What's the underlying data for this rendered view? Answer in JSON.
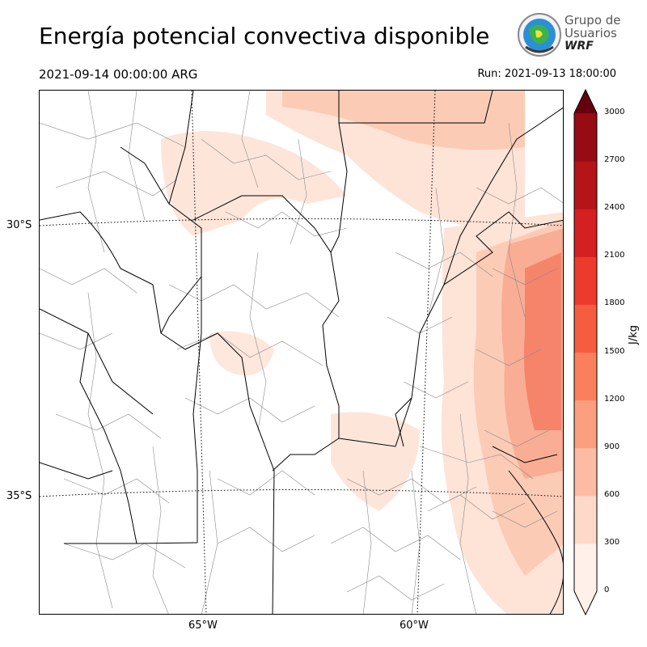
{
  "header": {
    "title": "Energía potencial convectiva disponible",
    "valid_time": "2021-09-14 00:00:00 ARG",
    "run_time": "Run: 2021-09-13 18:00:00"
  },
  "logo": {
    "line1": "Grupo de",
    "line2": "Usuarios",
    "line3": "WRF"
  },
  "map": {
    "lat_labels": [
      "30°S",
      "35°S"
    ],
    "lon_labels": [
      "65°W",
      "60°W"
    ],
    "colors": {
      "low": "#fee8df",
      "mid": "#fcc9b4",
      "high": "#f9a88e",
      "peak": "#f47e62",
      "border": "#000000",
      "district": "#8a8a8a"
    }
  },
  "colorbar": {
    "unit": "J/kg",
    "ticks": [
      "0",
      "300",
      "600",
      "900",
      "1200",
      "1500",
      "1800",
      "2100",
      "2400",
      "2700",
      "3000"
    ],
    "levels": [
      0,
      300,
      600,
      900,
      1200,
      1500,
      1800,
      2100,
      2400,
      2700,
      3000
    ],
    "colors": [
      "#fff0ea",
      "#fed9ca",
      "#fcbba2",
      "#fc9f80",
      "#fb7f5d",
      "#f65c40",
      "#ec3b2c",
      "#d42020",
      "#b51518",
      "#960b14",
      "#67000d"
    ],
    "extend": "both"
  }
}
